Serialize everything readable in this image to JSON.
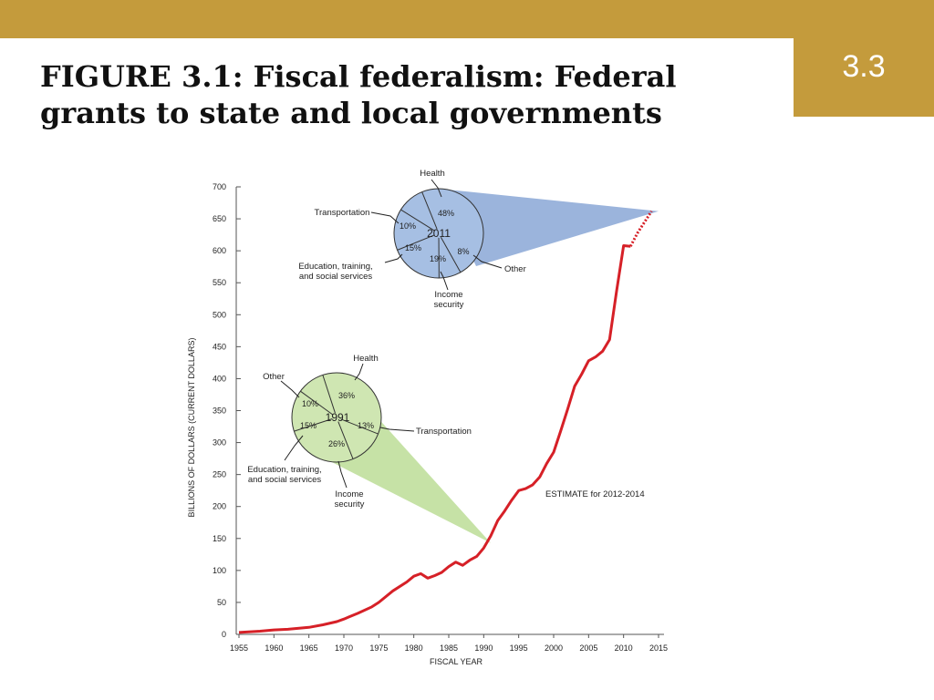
{
  "slide": {
    "title_line1": "FIGURE 3.1: Fiscal federalism: Federal",
    "title_line2": "grants to state and local governments",
    "number": "3.3"
  },
  "colors": {
    "band": "#c49b3c",
    "line": "#d62027",
    "pie_2011_fill": "#a6bfe3",
    "pie_1991_fill": "#cfe6b2",
    "wedge_2011": "#9bb4dc",
    "wedge_1991": "#c6e2a6"
  },
  "chart_data": {
    "type": "line",
    "xlabel": "FISCAL YEAR",
    "ylabel": "BILLIONS OF DOLLARS (CURRENT DOLLARS)",
    "xlim": [
      1955,
      2015
    ],
    "ylim": [
      0,
      700
    ],
    "x_ticks": [
      "1955",
      "1960",
      "1965",
      "1970",
      "1975",
      "1980",
      "1985",
      "1990",
      "1995",
      "2000",
      "2005",
      "2010",
      "2015"
    ],
    "y_ticks": [
      "0",
      "50",
      "100",
      "150",
      "200",
      "250",
      "300",
      "350",
      "400",
      "450",
      "500",
      "550",
      "600",
      "650",
      "700"
    ],
    "series": [
      {
        "style": "solid",
        "points": [
          [
            1955,
            3
          ],
          [
            1958,
            5
          ],
          [
            1960,
            7
          ],
          [
            1962,
            8
          ],
          [
            1965,
            11
          ],
          [
            1967,
            15
          ],
          [
            1969,
            20
          ],
          [
            1970,
            24
          ],
          [
            1972,
            33
          ],
          [
            1974,
            43
          ],
          [
            1975,
            50
          ],
          [
            1977,
            68
          ],
          [
            1979,
            82
          ],
          [
            1980,
            91
          ],
          [
            1981,
            95
          ],
          [
            1982,
            88
          ],
          [
            1983,
            92
          ],
          [
            1984,
            97
          ],
          [
            1985,
            106
          ],
          [
            1986,
            113
          ],
          [
            1987,
            108
          ],
          [
            1988,
            116
          ],
          [
            1989,
            122
          ],
          [
            1990,
            135
          ],
          [
            1991,
            154
          ],
          [
            1992,
            178
          ],
          [
            1993,
            193
          ],
          [
            1994,
            210
          ],
          [
            1995,
            225
          ],
          [
            1996,
            228
          ],
          [
            1997,
            234
          ],
          [
            1998,
            246
          ],
          [
            1999,
            267
          ],
          [
            2000,
            285
          ],
          [
            2001,
            318
          ],
          [
            2002,
            352
          ],
          [
            2003,
            388
          ],
          [
            2004,
            407
          ],
          [
            2005,
            428
          ],
          [
            2006,
            434
          ],
          [
            2007,
            443
          ],
          [
            2008,
            461
          ],
          [
            2009,
            537
          ],
          [
            2010,
            608
          ],
          [
            2011,
            607
          ]
        ]
      },
      {
        "name": "ESTIMATE for 2012-2014",
        "style": "dotted",
        "points": [
          [
            2011,
            607
          ],
          [
            2012,
            628
          ],
          [
            2013,
            645
          ],
          [
            2014,
            662
          ]
        ]
      }
    ],
    "pies": [
      {
        "year": "2011",
        "slices": [
          {
            "label": "Health",
            "value": 48
          },
          {
            "label": "Other",
            "value": 8
          },
          {
            "label": "Income security",
            "value": 19
          },
          {
            "label": "Education, training, and social services",
            "value": 15
          },
          {
            "label": "Transportation",
            "value": 10
          }
        ]
      },
      {
        "year": "1991",
        "slices": [
          {
            "label": "Health",
            "value": 36
          },
          {
            "label": "Transportation",
            "value": 13
          },
          {
            "label": "Income security",
            "value": 26
          },
          {
            "label": "Education, training, and social services",
            "value": 15
          },
          {
            "label": "Other",
            "value": 10
          }
        ]
      }
    ],
    "callouts": {
      "p2011_health": "Health",
      "p2011_transport": "Transportation",
      "p2011_edu_1": "Education, training,",
      "p2011_edu_2": "and social services",
      "p2011_other": "Other",
      "p2011_income_1": "Income",
      "p2011_income_2": "security",
      "p1991_health": "Health",
      "p1991_other": "Other",
      "p1991_transport": "Transportation",
      "p1991_edu_1": "Education, training,",
      "p1991_edu_2": "and social services",
      "p1991_income_1": "Income",
      "p1991_income_2": "security",
      "estimate": "ESTIMATE for 2012-2014"
    }
  }
}
